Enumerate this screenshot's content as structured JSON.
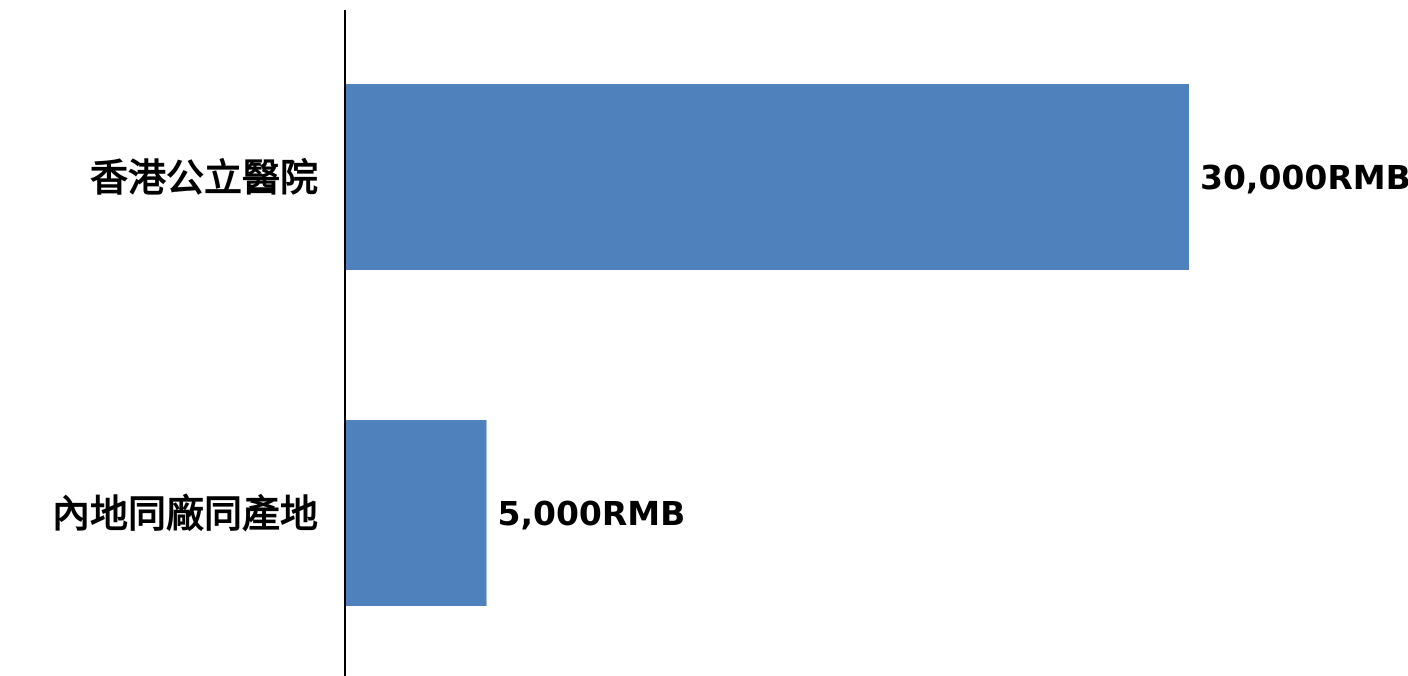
{
  "chart_data": {
    "type": "bar",
    "orientation": "horizontal",
    "categories": [
      "香港公立醫院",
      "內地同廠同產地"
    ],
    "values": [
      30000,
      5000
    ],
    "data_labels": [
      "30,000RMB",
      "5,000RMB"
    ],
    "title": "",
    "xlabel": "",
    "ylabel": "",
    "xlim": [
      0,
      35000
    ],
    "grid": false,
    "legend": "none",
    "bar_color": "#4F81BD"
  }
}
